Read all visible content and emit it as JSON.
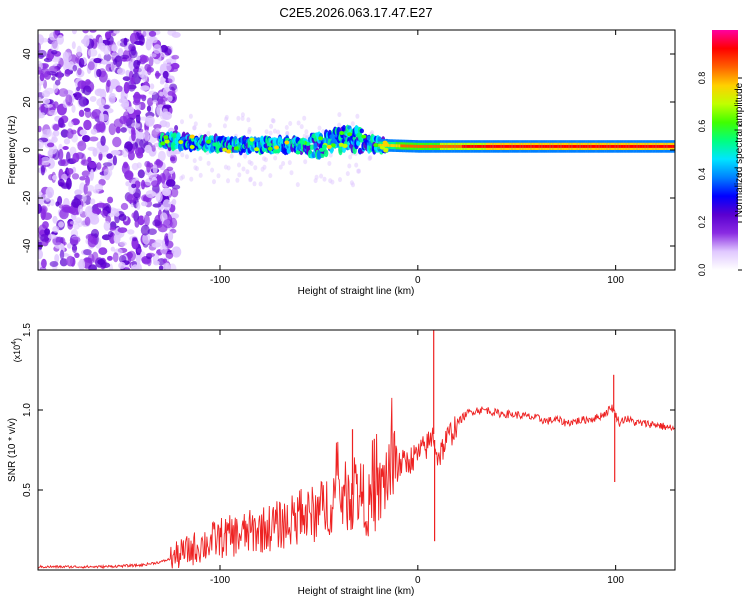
{
  "title": "C2E5.2026.063.17.47.E27",
  "chart_data": [
    {
      "type": "heatmap",
      "name": "spectrogram",
      "xlabel": "Height of straight line (km)",
      "ylabel": "Frequency (Hz)",
      "xlim": [
        -192,
        130
      ],
      "ylim": [
        -50,
        50
      ],
      "xticks": [
        -100,
        0,
        100
      ],
      "yticks": [
        -40,
        -20,
        0,
        20,
        40
      ],
      "colorbar": {
        "label": "Normalized spectral amplitude",
        "range": [
          0.0,
          1.0
        ],
        "ticks": [
          "0.0",
          "0.2",
          "0.4",
          "0.6",
          "0.8"
        ],
        "colors": [
          "#ffffff",
          "#e0c8ff",
          "#8a2be2",
          "#5a00d0",
          "#0000ff",
          "#0080ff",
          "#00e5ff",
          "#00ff80",
          "#40ff00",
          "#c0ff00",
          "#ffd000",
          "#ff6000",
          "#ff0000",
          "#ff00a0"
        ]
      },
      "ridge": [
        {
          "x": -130,
          "y": 4
        },
        {
          "x": -110,
          "y": 3
        },
        {
          "x": -90,
          "y": 2
        },
        {
          "x": -70,
          "y": 2
        },
        {
          "x": -50,
          "y": 2
        },
        {
          "x": -35,
          "y": 5
        },
        {
          "x": -20,
          "y": 2
        },
        {
          "x": 0,
          "y": 1.5
        },
        {
          "x": 40,
          "y": 1.5
        },
        {
          "x": 100,
          "y": 1.5
        },
        {
          "x": 130,
          "y": 1.5
        }
      ]
    },
    {
      "type": "line",
      "name": "snr",
      "xlabel": "Height of straight line (km)",
      "ylabel": "SNR (10 * v/v)",
      "multiplier": "(x10",
      "multiplier_exp": "4",
      "multiplier_close": ")",
      "xlim": [
        -192,
        130
      ],
      "ylim": [
        0,
        1.5
      ],
      "xticks": [
        -100,
        0,
        100
      ],
      "ytick_labels": [
        "0.5",
        "1.0",
        "1.5"
      ],
      "series": [
        {
          "name": "SNR",
          "color": "#ee2222",
          "x": [
            -192,
            -180,
            -160,
            -140,
            -130,
            -125,
            -120,
            -110,
            -100,
            -90,
            -80,
            -70,
            -60,
            -50,
            -45,
            -40,
            -35,
            -30,
            -25,
            -20,
            -15,
            -10,
            -5,
            0,
            5,
            8,
            10,
            15,
            20,
            25,
            30,
            35,
            40,
            50,
            60,
            65,
            70,
            75,
            80,
            90,
            95,
            98,
            100,
            102,
            105,
            110,
            120,
            130
          ],
          "y": [
            0.02,
            0.02,
            0.02,
            0.03,
            0.05,
            0.07,
            0.1,
            0.15,
            0.2,
            0.22,
            0.25,
            0.28,
            0.32,
            0.36,
            0.42,
            0.48,
            0.45,
            0.5,
            0.4,
            0.45,
            0.62,
            0.65,
            0.68,
            0.72,
            0.78,
            0.85,
            0.7,
            0.82,
            0.92,
            0.98,
            1.0,
            1.0,
            0.98,
            0.97,
            0.95,
            0.93,
            0.94,
            0.92,
            0.93,
            0.95,
            0.98,
            1.02,
            0.97,
            0.92,
            0.95,
            0.92,
            0.91,
            0.88
          ]
        }
      ],
      "spikes": [
        {
          "x": 8,
          "y": 1.55
        },
        {
          "x": 99,
          "y": 1.22
        },
        {
          "x": 99.5,
          "y": 0.55
        },
        {
          "x": 8.5,
          "y": 0.18
        },
        {
          "x": -33,
          "y": 0.88
        },
        {
          "x": -22,
          "y": 0.82
        }
      ]
    }
  ]
}
